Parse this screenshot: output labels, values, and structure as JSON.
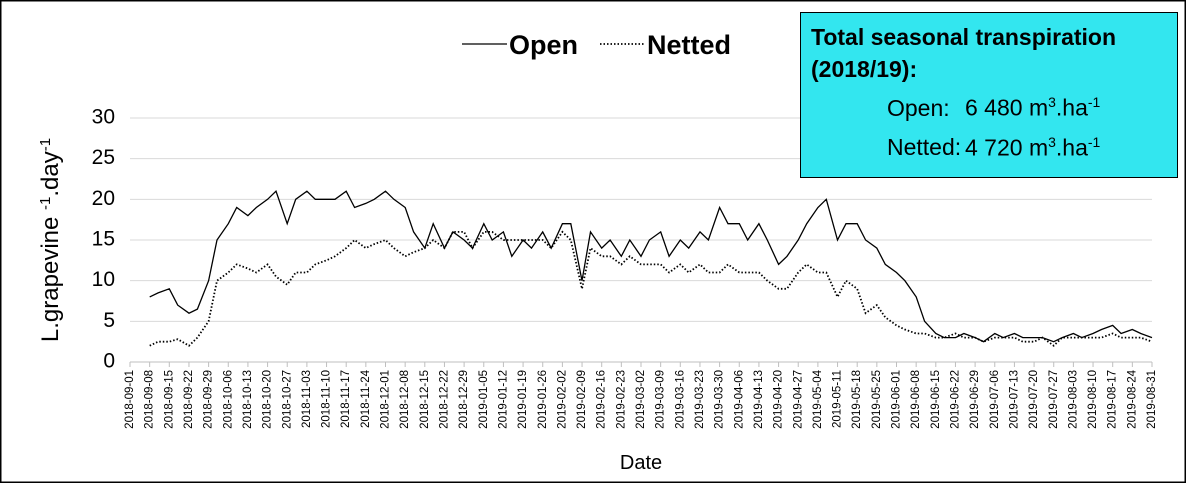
{
  "chart_data": {
    "type": "line",
    "y_label": [
      "L.grapevine ",
      "-1",
      ".day",
      "-1"
    ],
    "x_label": "Date",
    "legend": "top",
    "grid": true,
    "annotation": {
      "title": "Total seasonal transpiration (2018/19):",
      "lines": [
        [
          "Open:",
          "6 480 m",
          "3",
          ".ha",
          "-1"
        ],
        [
          "Netted:",
          "4 720 m",
          "3",
          ".ha",
          "-1"
        ]
      ]
    },
    "xlim": [
      "2018-09-01",
      "2019-08-31"
    ],
    "xticks": [
      "2018-09-01",
      "2018-09-08",
      "2018-09-15",
      "2018-09-22",
      "2018-09-29",
      "2018-10-06",
      "2018-10-13",
      "2018-10-20",
      "2018-10-27",
      "2018-11-03",
      "2018-11-10",
      "2018-11-17",
      "2018-11-24",
      "2018-12-01",
      "2018-12-08",
      "2018-12-15",
      "2018-12-22",
      "2018-12-29",
      "2019-01-05",
      "2019-01-12",
      "2019-01-19",
      "2019-01-26",
      "2019-02-02",
      "2019-02-09",
      "2019-02-16",
      "2019-02-23",
      "2019-03-02",
      "2019-03-09",
      "2019-03-16",
      "2019-03-23",
      "2019-03-30",
      "2019-04-06",
      "2019-04-13",
      "2019-04-20",
      "2019-04-27",
      "2019-05-04",
      "2019-05-11",
      "2019-05-18",
      "2019-05-25",
      "2019-06-01",
      "2019-06-08",
      "2019-06-15",
      "2019-06-22",
      "2019-06-29",
      "2019-07-06",
      "2019-07-13",
      "2019-07-20",
      "2019-07-27",
      "2019-08-03",
      "2019-08-10",
      "2019-08-17",
      "2019-08-24",
      "2019-08-31"
    ],
    "ylim": [
      0,
      30
    ],
    "yticks": [
      0,
      5,
      10,
      15,
      20,
      25,
      30
    ],
    "x": [
      "2018-09-08",
      "2018-09-11",
      "2018-09-15",
      "2018-09-18",
      "2018-09-22",
      "2018-09-25",
      "2018-09-29",
      "2018-10-02",
      "2018-10-06",
      "2018-10-09",
      "2018-10-13",
      "2018-10-16",
      "2018-10-20",
      "2018-10-23",
      "2018-10-27",
      "2018-10-30",
      "2018-11-03",
      "2018-11-06",
      "2018-11-10",
      "2018-11-13",
      "2018-11-17",
      "2018-11-20",
      "2018-11-24",
      "2018-11-27",
      "2018-12-01",
      "2018-12-04",
      "2018-12-08",
      "2018-12-11",
      "2018-12-15",
      "2018-12-18",
      "2018-12-22",
      "2018-12-25",
      "2018-12-29",
      "2019-01-01",
      "2019-01-05",
      "2019-01-08",
      "2019-01-12",
      "2019-01-15",
      "2019-01-19",
      "2019-01-22",
      "2019-01-26",
      "2019-01-29",
      "2019-02-02",
      "2019-02-05",
      "2019-02-09",
      "2019-02-12",
      "2019-02-16",
      "2019-02-19",
      "2019-02-23",
      "2019-02-26",
      "2019-03-02",
      "2019-03-05",
      "2019-03-09",
      "2019-03-12",
      "2019-03-16",
      "2019-03-19",
      "2019-03-23",
      "2019-03-26",
      "2019-03-30",
      "2019-04-02",
      "2019-04-06",
      "2019-04-09",
      "2019-04-13",
      "2019-04-16",
      "2019-04-20",
      "2019-04-23",
      "2019-04-27",
      "2019-04-30",
      "2019-05-04",
      "2019-05-07",
      "2019-05-11",
      "2019-05-14",
      "2019-05-18",
      "2019-05-21",
      "2019-05-25",
      "2019-05-28",
      "2019-06-01",
      "2019-06-04",
      "2019-06-08",
      "2019-06-11",
      "2019-06-15",
      "2019-06-18",
      "2019-06-22",
      "2019-06-25",
      "2019-06-29",
      "2019-07-02",
      "2019-07-06",
      "2019-07-09",
      "2019-07-13",
      "2019-07-16",
      "2019-07-20",
      "2019-07-23",
      "2019-07-27",
      "2019-07-30",
      "2019-08-03",
      "2019-08-06",
      "2019-08-10",
      "2019-08-13",
      "2019-08-17",
      "2019-08-20",
      "2019-08-24",
      "2019-08-27",
      "2019-08-31"
    ],
    "series": [
      {
        "name": "Open",
        "color": "#000000",
        "style": "solid",
        "values": [
          8,
          8.5,
          9,
          7,
          6,
          6.5,
          10,
          15,
          17,
          19,
          18,
          19,
          20,
          21,
          17,
          20,
          21,
          20,
          20,
          20,
          21,
          19,
          19.5,
          20,
          21,
          20,
          19,
          16,
          14,
          17,
          14,
          16,
          15,
          14,
          17,
          15,
          16,
          13,
          15,
          14,
          16,
          14,
          17,
          17,
          10,
          16,
          14,
          15,
          13,
          15,
          13,
          15,
          16,
          13,
          15,
          14,
          16,
          15,
          19,
          17,
          17,
          15,
          17,
          15,
          12,
          13,
          15,
          17,
          19,
          20,
          15,
          17,
          17,
          15,
          14,
          12,
          11,
          10,
          8,
          5,
          3.5,
          3,
          3,
          3.5,
          3,
          2.5,
          3.5,
          3,
          3.5,
          3,
          3,
          3,
          2.5,
          3,
          3.5,
          3,
          3.5,
          4,
          4.5,
          3.5,
          4,
          3.5,
          3
        ]
      },
      {
        "name": "Netted",
        "color": "#000000",
        "style": "dotted",
        "values": [
          2,
          2.5,
          2.5,
          2.8,
          2,
          3,
          5,
          10,
          11,
          12,
          11.5,
          11,
          12,
          10.5,
          9.5,
          11,
          11,
          12,
          12.5,
          13,
          14,
          15,
          14,
          14.5,
          15,
          14,
          13,
          13.5,
          14,
          15,
          14,
          16,
          16,
          14,
          16,
          16,
          15,
          15,
          15,
          15,
          15,
          14,
          16,
          15,
          9,
          14,
          13,
          13,
          12,
          13,
          12,
          12,
          12,
          11,
          12,
          11,
          12,
          11,
          11,
          12,
          11,
          11,
          11,
          10,
          9,
          9,
          11,
          12,
          11,
          11,
          8,
          10,
          9,
          6,
          7,
          5.5,
          4.5,
          4,
          3.5,
          3.5,
          3,
          3,
          3.5,
          3,
          3,
          2.5,
          3,
          3,
          3,
          2.5,
          2.5,
          3,
          2,
          3,
          3,
          3,
          3,
          3,
          3.5,
          3,
          3,
          3,
          2.5
        ]
      }
    ]
  }
}
